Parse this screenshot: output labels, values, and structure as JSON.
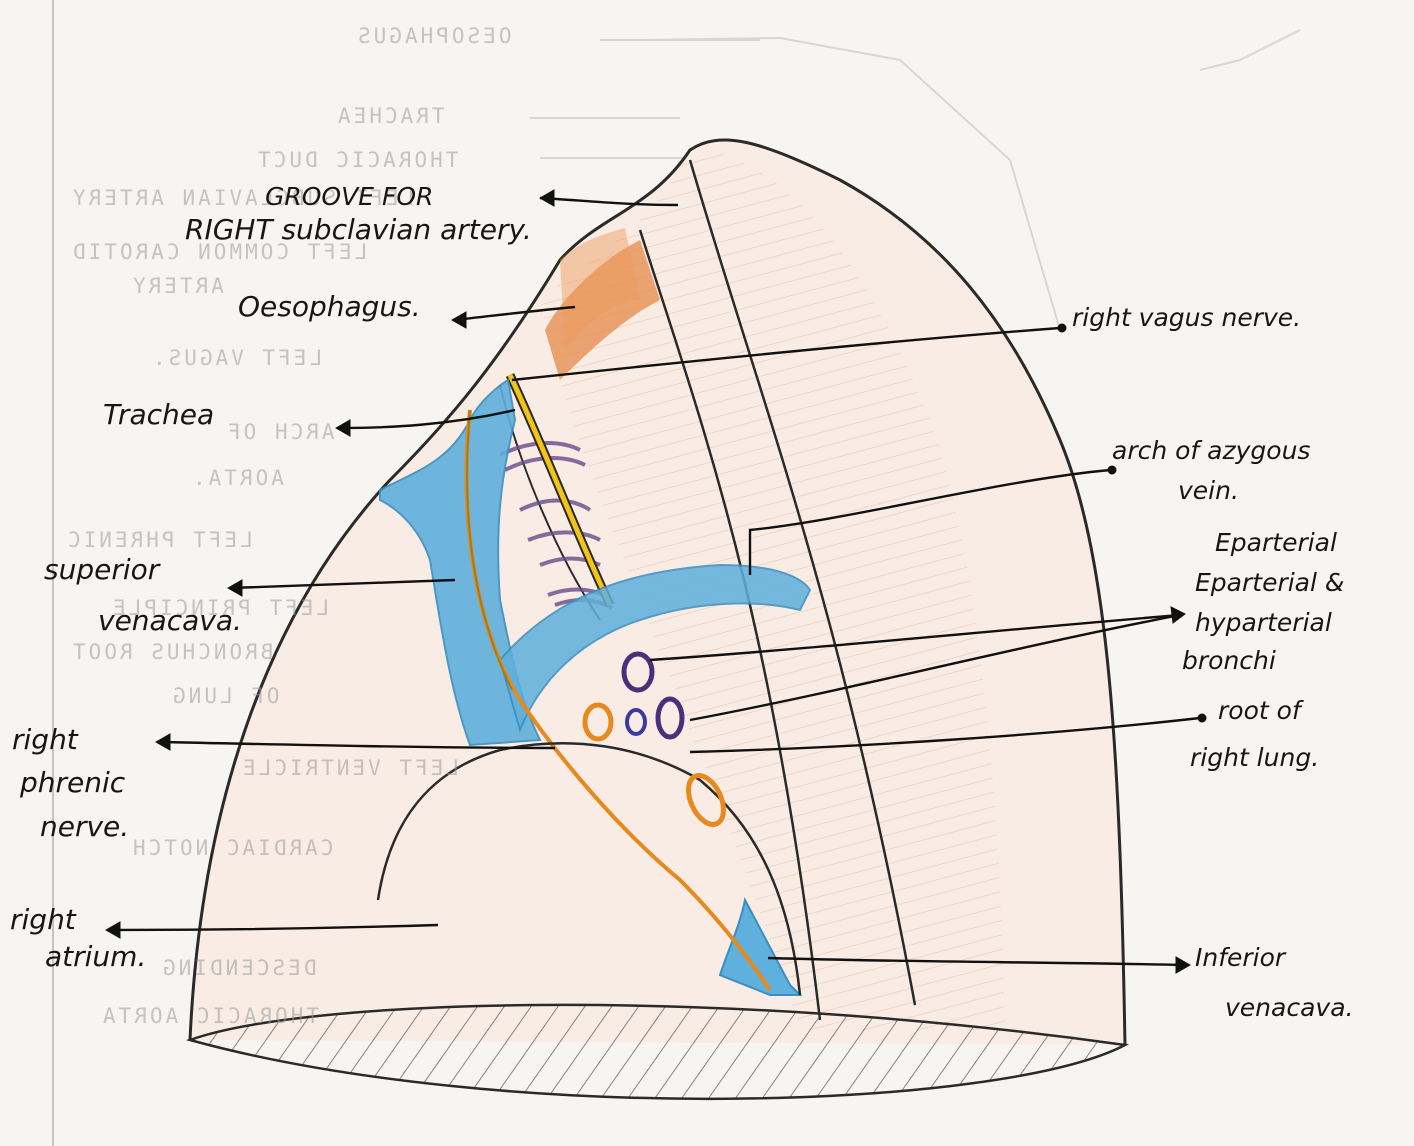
{
  "labels": {
    "groove_line1": "GROOVE FOR",
    "groove_line2": "RIGHT subclavian artery.",
    "oesophagus": "Oesophagus.",
    "right_vagus": "right vagus nerve.",
    "trachea": "Trachea",
    "arch_azygos_line1": "arch of azygous",
    "arch_azygos_line2": "vein.",
    "eparterial_line1": "Eparterial",
    "eparterial_line2": "Eparterial &",
    "eparterial_line3": "hyparterial",
    "eparterial_line4": "bronchi",
    "svc_line1": "superior",
    "svc_line2": "venacava.",
    "root_line1": "root of",
    "root_line2": "right lung.",
    "phrenic_line1": "right",
    "phrenic_line2": "phrenic",
    "phrenic_line3": "nerve.",
    "atrium_line1": "right",
    "atrium_line2": "atrium.",
    "ivc_line1": "Inferior",
    "ivc_line2": "venacava."
  },
  "show_through": {
    "oesophagus": "OESOPHAGUS",
    "trachea": "TRACHEA",
    "thoracic_duct": "THORACIC DUCT",
    "left_subclavian": "LEFT SUBCLAVIAN ARTERY",
    "left_common_carotid_1": "LEFT COMMON CAROTID",
    "left_common_carotid_2": "ARTERY",
    "left_vagus": "LEFT VAGUS.",
    "arch_of_aorta_1": "ARCH OF",
    "arch_of_aorta_2": "AORTA.",
    "left_phrenic": "LEFT PHRENIC",
    "left_principal_1": "LEFT PRINCIPLE",
    "left_principal_2": "BRONCHUS ROOT",
    "left_principal_3": "OF LUNG",
    "left_ventricle": "LEFT VENTRICLE",
    "cardiac_notch": "CARDIAC NOTCH",
    "descending_1": "DESCENDING",
    "descending_2": "THORACIC AORTA"
  },
  "colors": {
    "vein_blue": "#5fb0dc",
    "nerve_yellow": "#f2c418",
    "nerve_orange": "#e8891e",
    "esophagus_orange": "#e07a3a",
    "bronchus_purple": "#4a2f7a",
    "outline": "#2a2a2a"
  }
}
